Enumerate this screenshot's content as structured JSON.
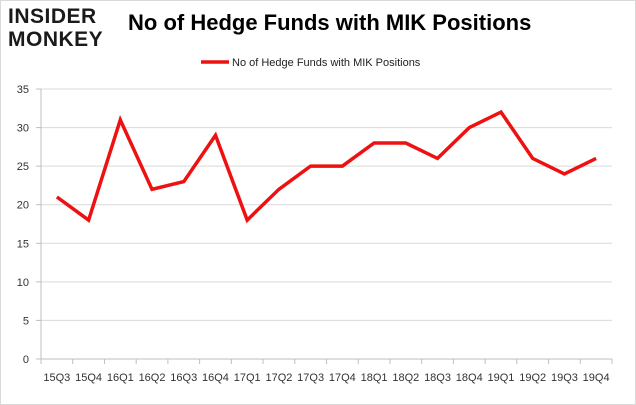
{
  "brand": {
    "line1": "INSIDER",
    "line2": "MONKEY"
  },
  "chart_data": {
    "type": "line",
    "title": "No of Hedge Funds with MIK Positions",
    "xlabel": "",
    "ylabel": "",
    "categories": [
      "15Q3",
      "15Q4",
      "16Q1",
      "16Q2",
      "16Q3",
      "16Q4",
      "17Q1",
      "17Q2",
      "17Q3",
      "17Q4",
      "18Q1",
      "18Q2",
      "18Q3",
      "18Q4",
      "19Q1",
      "19Q2",
      "19Q3",
      "19Q4"
    ],
    "series": [
      {
        "name": "No of Hedge Funds with MIK Positions",
        "color": "#ee1111",
        "values": [
          21,
          18,
          31,
          22,
          23,
          29,
          18,
          22,
          25,
          25,
          28,
          28,
          26,
          30,
          32,
          26,
          24,
          26
        ]
      }
    ],
    "ylim": [
      0,
      35
    ],
    "yticks": [
      0,
      5,
      10,
      15,
      20,
      25,
      30,
      35
    ],
    "grid": true,
    "legend": "top-center"
  }
}
